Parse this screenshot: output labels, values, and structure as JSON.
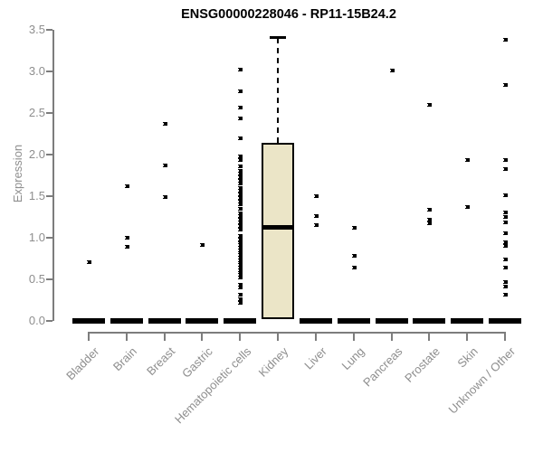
{
  "chart_data": {
    "type": "boxplot",
    "title": "ENSG00000228046 - RP11-15B24.2",
    "ylabel": "Expression",
    "xlabel": "",
    "ylim": [
      0,
      3.5
    ],
    "yticks": [
      "0.0",
      "0.5",
      "1.0",
      "1.5",
      "2.0",
      "2.5",
      "3.0",
      "3.5"
    ],
    "ytick_values": [
      0.0,
      0.5,
      1.0,
      1.5,
      2.0,
      2.5,
      3.0,
      3.5
    ],
    "grid": "off",
    "colors": {
      "box_fill": "#ebe5c7",
      "box_border": "#000000",
      "axis_line": "#7d7d7d",
      "tick_label": "#8e8e8e",
      "point": "#000000"
    },
    "categories": [
      "Bladder",
      "Brain",
      "Breast",
      "Gastric",
      "Hematopoietic cells",
      "Kidney",
      "Liver",
      "Lung",
      "Pancreas",
      "Prostate",
      "Skin",
      "Unknown / Other"
    ],
    "boxes": [
      {
        "category": "Bladder",
        "median": 0,
        "q1": 0,
        "q3": 0,
        "whisker_low": 0,
        "whisker_high": 0,
        "points": [
          0.71
        ]
      },
      {
        "category": "Brain",
        "median": 0,
        "q1": 0,
        "q3": 0,
        "whisker_low": 0,
        "whisker_high": 0,
        "points": [
          1.62,
          1.0,
          0.89
        ]
      },
      {
        "category": "Breast",
        "median": 0,
        "q1": 0,
        "q3": 0,
        "whisker_low": 0,
        "whisker_high": 0,
        "points": [
          2.37,
          1.87,
          1.49
        ]
      },
      {
        "category": "Gastric",
        "median": 0,
        "q1": 0,
        "q3": 0,
        "whisker_low": 0,
        "whisker_high": 0,
        "points": [
          0.91
        ]
      },
      {
        "category": "Hematopoietic cells",
        "median": 0,
        "q1": 0,
        "q3": 0,
        "whisker_low": 0,
        "whisker_high": 0,
        "points": [
          3.02,
          2.76,
          2.56,
          2.44,
          2.2,
          1.98,
          1.93,
          1.86,
          1.8,
          1.77,
          1.73,
          1.69,
          1.65,
          1.6,
          1.56,
          1.52,
          1.48,
          1.44,
          1.4,
          1.35,
          1.29,
          1.26,
          1.22,
          1.18,
          1.14,
          1.1,
          1.02,
          0.98,
          0.94,
          0.91,
          0.88,
          0.85,
          0.82,
          0.79,
          0.76,
          0.73,
          0.7,
          0.67,
          0.64,
          0.61,
          0.58,
          0.55,
          0.52,
          0.44,
          0.4,
          0.31,
          0.26,
          0.22
        ]
      },
      {
        "category": "Kidney",
        "median": 1.13,
        "q1": 0.02,
        "q3": 2.14,
        "whisker_low": 0.02,
        "whisker_high": 3.4,
        "points": []
      },
      {
        "category": "Liver",
        "median": 0,
        "q1": 0,
        "q3": 0,
        "whisker_low": 0,
        "whisker_high": 0,
        "points": [
          1.5,
          1.26,
          1.15
        ]
      },
      {
        "category": "Lung",
        "median": 0,
        "q1": 0,
        "q3": 0,
        "whisker_low": 0,
        "whisker_high": 0,
        "points": [
          1.12,
          0.78,
          0.64
        ]
      },
      {
        "category": "Pancreas",
        "median": 0,
        "q1": 0,
        "q3": 0,
        "whisker_low": 0,
        "whisker_high": 0,
        "points": [
          3.01
        ]
      },
      {
        "category": "Prostate",
        "median": 0,
        "q1": 0,
        "q3": 0,
        "whisker_low": 0,
        "whisker_high": 0,
        "points": [
          2.6,
          1.34,
          1.22,
          1.17
        ]
      },
      {
        "category": "Skin",
        "median": 0,
        "q1": 0,
        "q3": 0,
        "whisker_low": 0,
        "whisker_high": 0,
        "points": [
          1.94,
          1.37
        ]
      },
      {
        "category": "Unknown / Other",
        "median": 0,
        "q1": 0,
        "q3": 0,
        "whisker_low": 0,
        "whisker_high": 0,
        "points": [
          3.38,
          2.84,
          1.93,
          1.83,
          1.51,
          1.3,
          1.25,
          1.19,
          1.05,
          0.95,
          0.9,
          0.74,
          0.64,
          0.47,
          0.41,
          0.31
        ]
      }
    ]
  }
}
